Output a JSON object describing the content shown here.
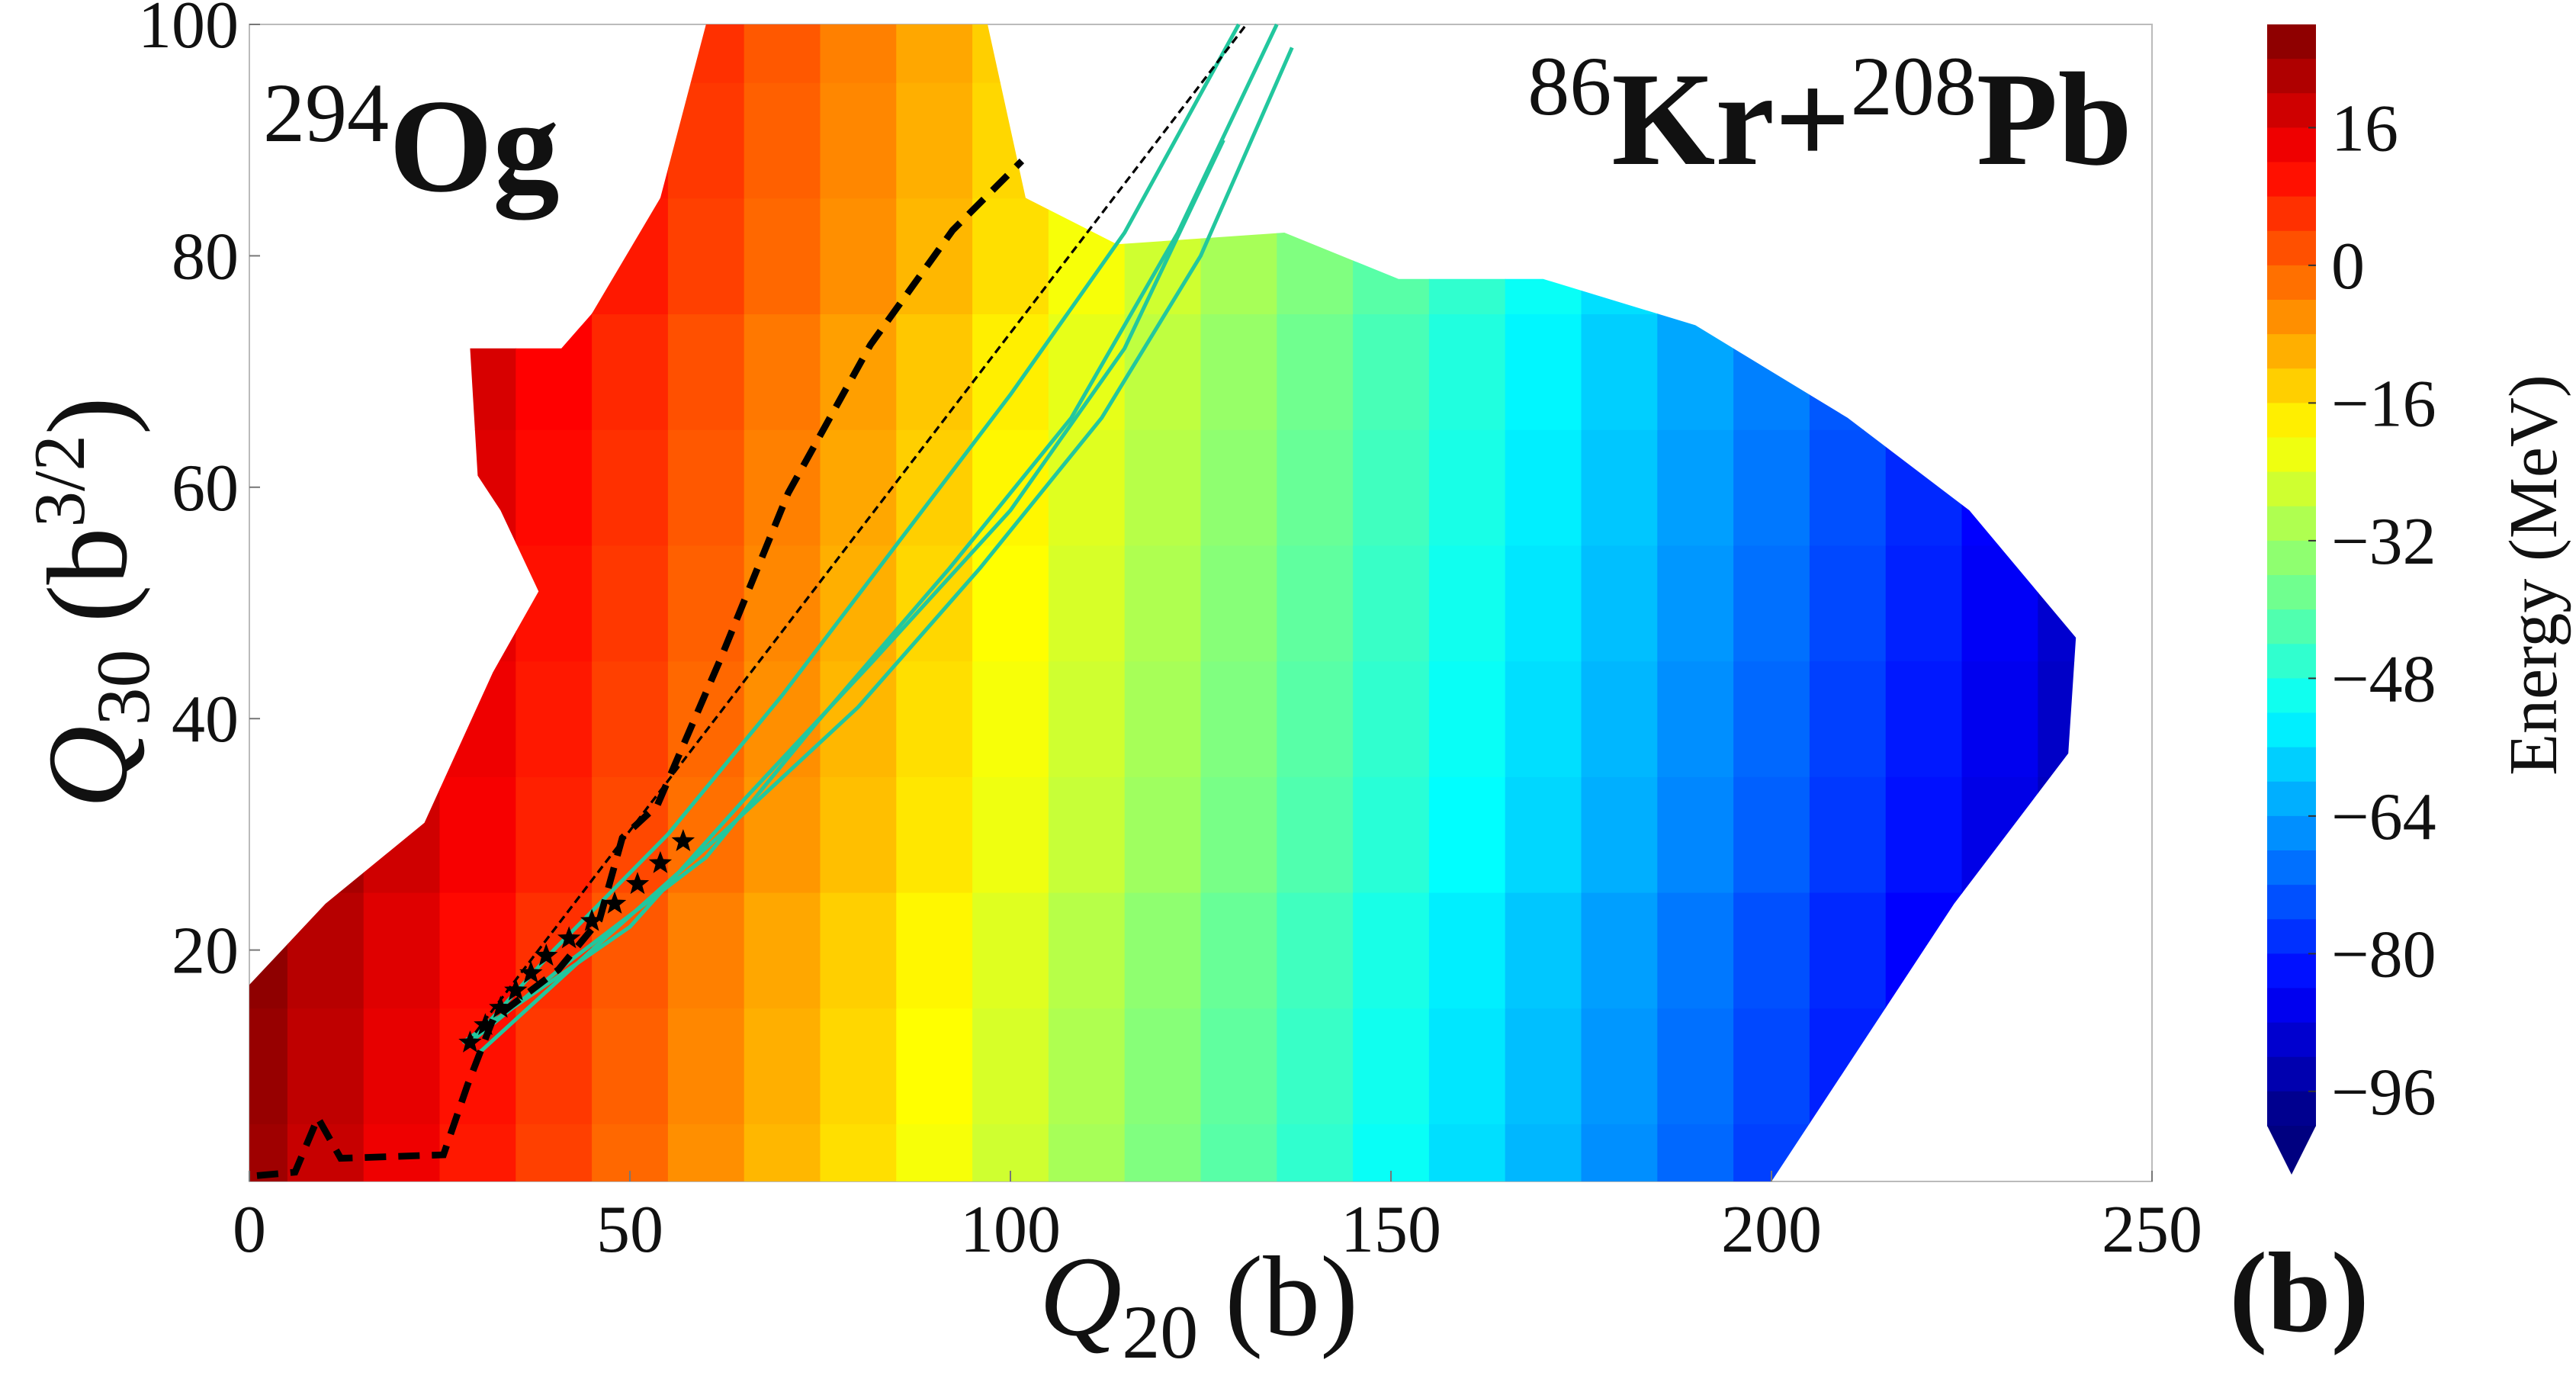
{
  "chart_data": {
    "type": "contour",
    "x_label": {
      "symbol": "Q",
      "subscript": "20",
      "unit": "(b)"
    },
    "y_label": {
      "symbol": "Q",
      "subscript": "30",
      "unit_open": "(b",
      "superscript": "3/2",
      "unit_close": ")"
    },
    "annotations": [
      {
        "superscript": "294",
        "text": "Og"
      },
      {
        "superscript": "86",
        "text": "Kr+",
        "superscript2": "208",
        "text2": "Pb"
      }
    ],
    "panel_label": "(b)",
    "colorbar_label": "Energy (MeV)",
    "colormap": "jet",
    "xlim": [
      0,
      250
    ],
    "ylim": [
      0,
      100
    ],
    "xticks": [
      0,
      50,
      100,
      150,
      200,
      250
    ],
    "yticks": [
      20,
      40,
      60,
      80,
      100
    ],
    "clim": [
      -100,
      28
    ],
    "cticks": [
      16,
      0,
      {
        "value": -16,
        "label": "−16"
      },
      {
        "value": -32,
        "label": "−32"
      },
      {
        "value": -48,
        "label": "−48"
      },
      {
        "value": -64,
        "label": "−64"
      },
      {
        "value": -80,
        "label": "−80"
      },
      {
        "value": -96,
        "label": "−96"
      }
    ],
    "x": [
      0,
      10,
      20,
      30,
      40,
      50,
      60,
      70,
      80,
      90,
      100,
      110,
      120,
      130,
      140,
      150,
      160,
      170,
      180,
      190,
      200,
      210,
      220,
      230,
      240,
      250
    ],
    "y": [
      0,
      10,
      20,
      30,
      40,
      50,
      60,
      70,
      80,
      90,
      100
    ],
    "z": [
      [
        24,
        19,
        14,
        9,
        4,
        -1,
        -6,
        -11,
        -16,
        -21,
        -26,
        -31,
        -36,
        -41,
        -46,
        -51,
        -56,
        -61,
        -66,
        -71,
        -76,
        -81,
        -86,
        -91,
        -96,
        -101
      ],
      [
        25,
        20,
        15,
        10,
        5,
        0,
        -5,
        -10,
        -15,
        -20,
        -25,
        -30,
        -35,
        -40,
        -45,
        -50,
        -55,
        -60,
        -65,
        -70,
        -75,
        -80,
        -85,
        -90,
        -95,
        -100
      ],
      [
        26,
        21,
        16,
        11,
        6,
        1,
        -4,
        -9,
        -14,
        -19,
        -24,
        -29,
        -34,
        -39,
        -44,
        -49,
        -54,
        -59,
        -64,
        -69,
        -74,
        -79,
        -84,
        -89,
        -94,
        -99
      ],
      [
        28,
        23,
        18,
        13,
        8,
        3,
        -2,
        -7,
        -12,
        -17,
        -22,
        -27,
        -32,
        -37,
        -42,
        -47,
        -52,
        -57,
        -62,
        -67,
        -72,
        -77,
        -82,
        -87,
        -92,
        -97
      ],
      [
        29,
        24,
        19,
        14,
        9,
        4,
        -1,
        -6,
        -11,
        -16,
        -21,
        -26,
        -31,
        -36,
        -41,
        -46,
        -51,
        -56,
        -61,
        -66,
        -71,
        -76,
        -81,
        -86,
        -91,
        -96
      ],
      [
        30,
        25,
        20,
        15,
        10,
        5,
        0,
        -5,
        -10,
        -15,
        -20,
        -25,
        -30,
        -35,
        -40,
        -45,
        -50,
        -55,
        -60,
        -65,
        -70,
        -75,
        -80,
        -85,
        -90,
        -95
      ],
      [
        31,
        26,
        21,
        16,
        11,
        6,
        1,
        -4,
        -9,
        -14,
        -19,
        -24,
        -29,
        -34,
        -39,
        -44,
        -49,
        -54,
        -59,
        -64,
        -69,
        -74,
        -79,
        -84,
        -89,
        -94
      ],
      [
        32,
        27,
        22,
        17,
        12,
        7,
        2,
        -3,
        -8,
        -13,
        -18,
        -23,
        -28,
        -33,
        -38,
        -43,
        -48,
        -53,
        -58,
        -63,
        -68,
        -73,
        -78,
        -83,
        -88,
        -93
      ],
      [
        34,
        29,
        24,
        19,
        14,
        9,
        4,
        -1,
        -6,
        -11,
        -16,
        -21,
        -26,
        -31,
        -36,
        -41,
        -46,
        -51,
        -56,
        -61,
        -66,
        -71,
        -76,
        -81,
        -86,
        -91
      ],
      [
        35,
        30,
        25,
        20,
        15,
        10,
        5,
        0,
        -5,
        -10,
        -15,
        -20,
        -25,
        -30,
        -35,
        -40,
        -45,
        -50,
        -55,
        -60,
        -65,
        -70,
        -75,
        -80,
        -85,
        -90
      ],
      [
        36,
        31,
        26,
        21,
        16,
        11,
        6,
        1,
        -4,
        -9,
        -14,
        -19,
        -24,
        -29,
        -34,
        -39,
        -44,
        -49,
        -54,
        -59,
        -64,
        -69,
        -74,
        -79,
        -84,
        -89
      ]
    ],
    "boundary": {
      "x": [
        0,
        0,
        10,
        23,
        32,
        38,
        33,
        30,
        29,
        41,
        45,
        54,
        60,
        97,
        102,
        114,
        136,
        151,
        170,
        190,
        210,
        226,
        240,
        239,
        224,
        200,
        0
      ],
      "y": [
        0,
        17,
        24,
        31,
        44,
        51,
        58,
        61,
        72,
        72,
        75,
        85,
        100,
        100,
        85,
        81,
        82,
        78,
        78,
        74,
        66,
        58,
        47,
        37,
        24,
        0,
        0
      ]
    },
    "lines": [
      {
        "color": "#000000",
        "linestyle": "dashed",
        "linewidth": 4,
        "x": [
          1,
          6,
          9,
          12,
          25.5,
          28.7,
          32,
          40.6,
          46,
          49,
          53.6,
          62,
          70.8,
          81.6,
          92.4,
          101.5
        ],
        "y": [
          0.5,
          0.8,
          5.5,
          2,
          2.3,
          8.4,
          14,
          18.3,
          22.6,
          29.7,
          32.5,
          45.3,
          59.5,
          72.3,
          82.2,
          88.2
        ]
      },
      {
        "color": "#000000",
        "linestyle": "dashed",
        "linewidth": 1.5,
        "x": [
          28.7,
          131
        ],
        "y": [
          12,
          100
        ]
      }
    ],
    "trajectories": {
      "color": "#22c79e",
      "paths": [
        {
          "x": [
            29,
            40,
            55,
            70,
            85,
            100,
            115,
            130
          ],
          "y": [
            12,
            20,
            30,
            42,
            55,
            68,
            82,
            100
          ]
        },
        {
          "x": [
            29,
            42,
            60,
            75,
            92,
            108,
            122,
            135
          ],
          "y": [
            12,
            19,
            28,
            40,
            53,
            66,
            82,
            100
          ]
        },
        {
          "x": [
            30,
            45,
            62,
            80,
            96,
            112,
            125,
            137
          ],
          "y": [
            11,
            20,
            30,
            41,
            53,
            66,
            80,
            98
          ]
        },
        {
          "x": [
            28,
            50,
            65,
            82,
            100,
            115,
            128
          ],
          "y": [
            12,
            22,
            33,
            45,
            58,
            72,
            90
          ]
        }
      ]
    },
    "markers": {
      "color": "#000000",
      "marker": "star",
      "x": [
        29,
        31,
        33,
        35,
        37,
        39,
        42,
        45,
        48,
        51,
        54,
        57
      ],
      "y": [
        12,
        13.5,
        15,
        16.5,
        18,
        19.5,
        21,
        22.5,
        24,
        25.7,
        27.5,
        29.4
      ]
    }
  }
}
